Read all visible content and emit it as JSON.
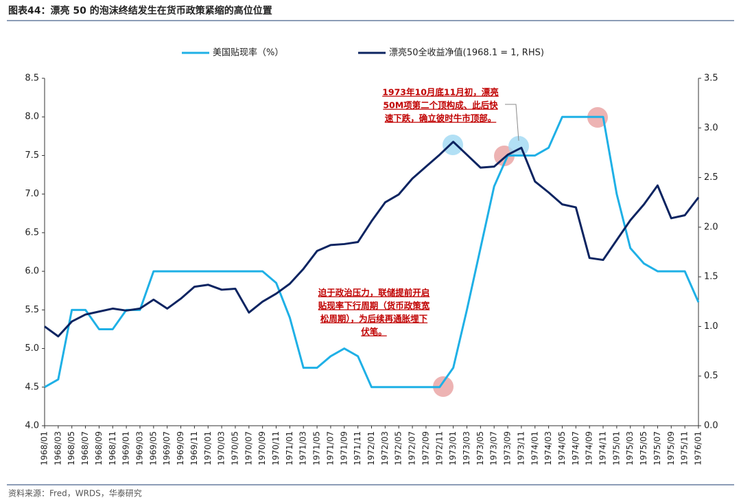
{
  "chart_data": {
    "type": "line",
    "title": "图表44：漂亮 50 的泡沫终结发生在货币政策紧缩的高位位置",
    "source": "资料来源：Fred，WRDS，华泰研究",
    "categories": [
      "1968/01",
      "1968/03",
      "1968/05",
      "1968/07",
      "1968/09",
      "1968/11",
      "1969/01",
      "1969/03",
      "1969/05",
      "1969/07",
      "1969/09",
      "1969/11",
      "1970/01",
      "1970/03",
      "1970/05",
      "1970/07",
      "1970/09",
      "1970/11",
      "1971/01",
      "1971/03",
      "1971/05",
      "1971/07",
      "1971/09",
      "1971/11",
      "1972/01",
      "1972/03",
      "1972/05",
      "1972/07",
      "1972/09",
      "1972/11",
      "1973/01",
      "1973/03",
      "1973/05",
      "1973/07",
      "1973/09",
      "1973/11",
      "1974/01",
      "1974/03",
      "1974/05",
      "1974/07",
      "1974/09",
      "1974/11",
      "1975/01",
      "1975/03",
      "1975/05",
      "1975/07",
      "1975/09",
      "1975/11",
      "1976/01"
    ],
    "series": [
      {
        "name": "美国贴现率（%）",
        "color": "#1fb0e6",
        "axis": "y",
        "values": [
          4.5,
          4.6,
          5.5,
          5.5,
          5.25,
          5.25,
          5.5,
          5.5,
          6.0,
          6.0,
          6.0,
          6.0,
          6.0,
          6.0,
          6.0,
          6.0,
          6.0,
          5.85,
          5.4,
          4.75,
          4.75,
          4.9,
          5.0,
          4.9,
          4.5,
          4.5,
          4.5,
          4.5,
          4.5,
          4.5,
          4.75,
          5.5,
          6.3,
          7.1,
          7.5,
          7.5,
          7.5,
          7.6,
          8.0,
          8.0,
          8.0,
          8.0,
          7.0,
          6.3,
          6.1,
          6.0,
          6.0,
          6.0,
          5.6
        ]
      },
      {
        "name": "漂亮50全收益净值(1968.1 = 1, RHS)",
        "color": "#0c2461",
        "axis": "y2",
        "values": [
          1.0,
          0.9,
          1.05,
          1.12,
          1.15,
          1.18,
          1.16,
          1.18,
          1.27,
          1.18,
          1.28,
          1.4,
          1.42,
          1.37,
          1.38,
          1.14,
          1.25,
          1.33,
          1.43,
          1.58,
          1.76,
          1.82,
          1.83,
          1.85,
          2.06,
          2.25,
          2.33,
          2.49,
          2.61,
          2.73,
          2.86,
          2.73,
          2.6,
          2.61,
          2.73,
          2.8,
          2.46,
          2.35,
          2.23,
          2.2,
          1.69,
          1.67,
          1.87,
          2.07,
          2.23,
          2.42,
          2.09,
          2.12,
          2.3
        ]
      }
    ],
    "ylim": [
      4.0,
      8.5
    ],
    "yticks": [
      {
        "value": 4,
        "label": "4.0"
      },
      4.5,
      {
        "value": 5,
        "label": "5.0"
      },
      5.5,
      {
        "value": 6,
        "label": "6.0"
      },
      6.5,
      {
        "value": 7,
        "label": "7.0"
      },
      7.5,
      {
        "value": 8,
        "label": "8.0"
      },
      8.5
    ],
    "y2lim": [
      0,
      3.5
    ],
    "y2ticks": [
      {
        "value": 0,
        "label": "0.0"
      },
      0.5,
      {
        "value": 1,
        "label": "1.0"
      },
      1.5,
      {
        "value": 2,
        "label": "2.0"
      },
      2.5,
      {
        "value": 3,
        "label": "3.0"
      },
      3.5
    ],
    "annotations": [
      [
        "1973年10月底11月初，漂亮",
        "50M项第二个顶构成、此后快",
        "速下跌，确立彼时牛市顶部。"
      ],
      [
        "迫于政治压力，联储提前开启",
        "贴现率下行周期（货币政策宽",
        "松周期），为后续再通胀埋下",
        "伏笔。"
      ]
    ]
  }
}
